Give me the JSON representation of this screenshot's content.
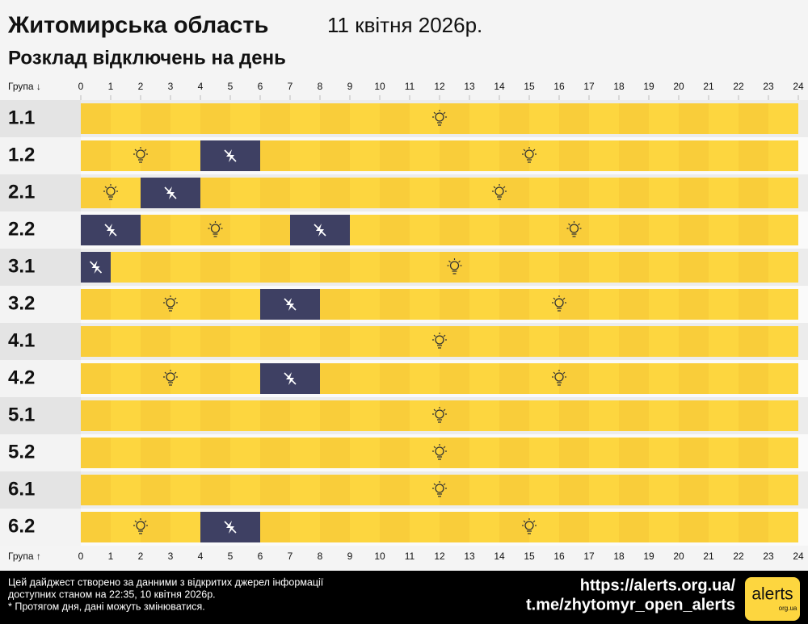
{
  "chart_data": {
    "type": "schedule",
    "title": "Житомирська область",
    "date": "11 квітня 2026р.",
    "subtitle": "Розклад відключень на день",
    "row_header_top": "Група ↓",
    "row_header_bottom": "Група ↑",
    "xlim": [
      0,
      24
    ],
    "xticks": [
      0,
      1,
      2,
      3,
      4,
      5,
      6,
      7,
      8,
      9,
      10,
      11,
      12,
      13,
      14,
      15,
      16,
      17,
      18,
      19,
      20,
      21,
      22,
      23,
      24
    ],
    "categories": [
      "1.1",
      "1.2",
      "2.1",
      "2.2",
      "3.1",
      "3.2",
      "4.1",
      "4.2",
      "5.1",
      "5.2",
      "6.1",
      "6.2"
    ],
    "outages": [
      [],
      [
        [
          4,
          6
        ]
      ],
      [
        [
          2,
          4
        ]
      ],
      [
        [
          0,
          2
        ],
        [
          7,
          9
        ]
      ],
      [
        [
          0,
          1
        ]
      ],
      [
        [
          6,
          8
        ]
      ],
      [],
      [
        [
          6,
          8
        ]
      ],
      [],
      [],
      [],
      [
        [
          4,
          6
        ]
      ]
    ],
    "on_colors": [
      "#f9cd3a",
      "#fdd63f"
    ],
    "off_color": "#3e4063",
    "footer": {
      "notes": [
        "Цей дайджест створено за данними з відкритих джерел інформації",
        "доступних станом на 22:35, 10 квітня 2026р.",
        "* Протягом дня, дані можуть змінюватися."
      ],
      "links": [
        "https://alerts.org.ua/",
        "t.me/zhytomyr_open_alerts"
      ],
      "logo": "alerts",
      "logo_sub": "org.ua"
    }
  }
}
